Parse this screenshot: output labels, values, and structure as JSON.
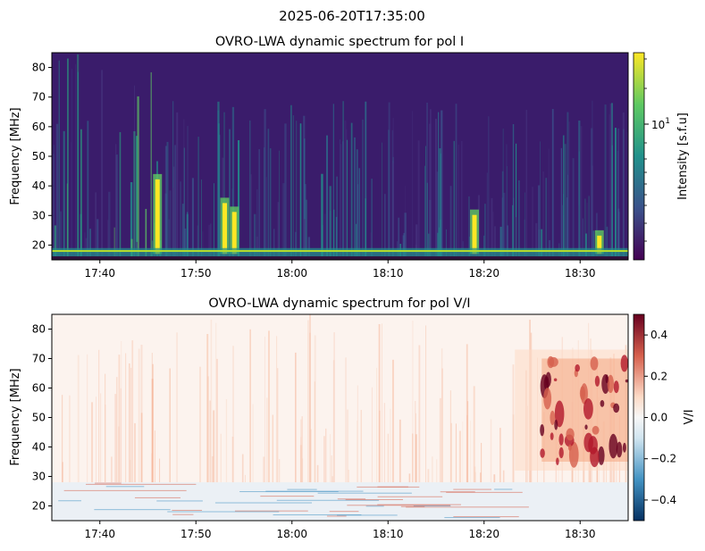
{
  "figure": {
    "suptitle": "2025-06-20T17:35:00"
  },
  "chart_data": [
    {
      "type": "heatmap",
      "title": "OVRO-LWA dynamic spectrum for pol I",
      "xlabel": "",
      "ylabel": "Frequency [MHz]",
      "xlim": [
        "17:35",
        "18:35"
      ],
      "ylim": [
        15,
        85
      ],
      "x_ticks": [
        "17:40",
        "17:50",
        "18:00",
        "18:10",
        "18:20",
        "18:30"
      ],
      "y_ticks": [
        20,
        30,
        40,
        50,
        60,
        70,
        80
      ],
      "colormap": "viridis",
      "colorbar": {
        "label": "Intensity [s.f.u]",
        "scale": "log",
        "major_tick": "10",
        "major_tick_exp": "1"
      },
      "description_values": {
        "bright_bursts": [
          {
            "time": "17:46",
            "freq_range_MHz": [
              17,
              44
            ]
          },
          {
            "time": "17:53",
            "freq_range_MHz": [
              17,
              36
            ]
          },
          {
            "time": "17:54",
            "freq_range_MHz": [
              17,
              33
            ]
          },
          {
            "time": "18:19",
            "freq_range_MHz": [
              17,
              32
            ]
          },
          {
            "time": "18:32",
            "freq_range_MHz": [
              17,
              25
            ]
          }
        ],
        "background_band_MHz": [
          16,
          19
        ]
      }
    },
    {
      "type": "heatmap",
      "title": "OVRO-LWA dynamic spectrum for pol V/I",
      "xlabel": "",
      "ylabel": "Frequency [MHz]",
      "xlim": [
        "17:35",
        "18:35"
      ],
      "ylim": [
        15,
        85
      ],
      "x_ticks": [
        "17:40",
        "17:50",
        "18:00",
        "18:10",
        "18:20",
        "18:30"
      ],
      "y_ticks": [
        20,
        30,
        40,
        50,
        60,
        70,
        80
      ],
      "colormap": "RdBu_r",
      "colorbar": {
        "label": "V/I",
        "range": [
          -0.5,
          0.5
        ],
        "ticks": [
          "0.4",
          "0.2",
          "0.0",
          "−0.2",
          "−0.4"
        ]
      },
      "description_values": {
        "strong_positive_region": {
          "time_range": [
            "18:26",
            "18:35"
          ],
          "freq_range_MHz": [
            35,
            70
          ],
          "max_value": 0.5
        },
        "weak_negative_band_MHz": [
          15,
          28
        ]
      }
    }
  ]
}
